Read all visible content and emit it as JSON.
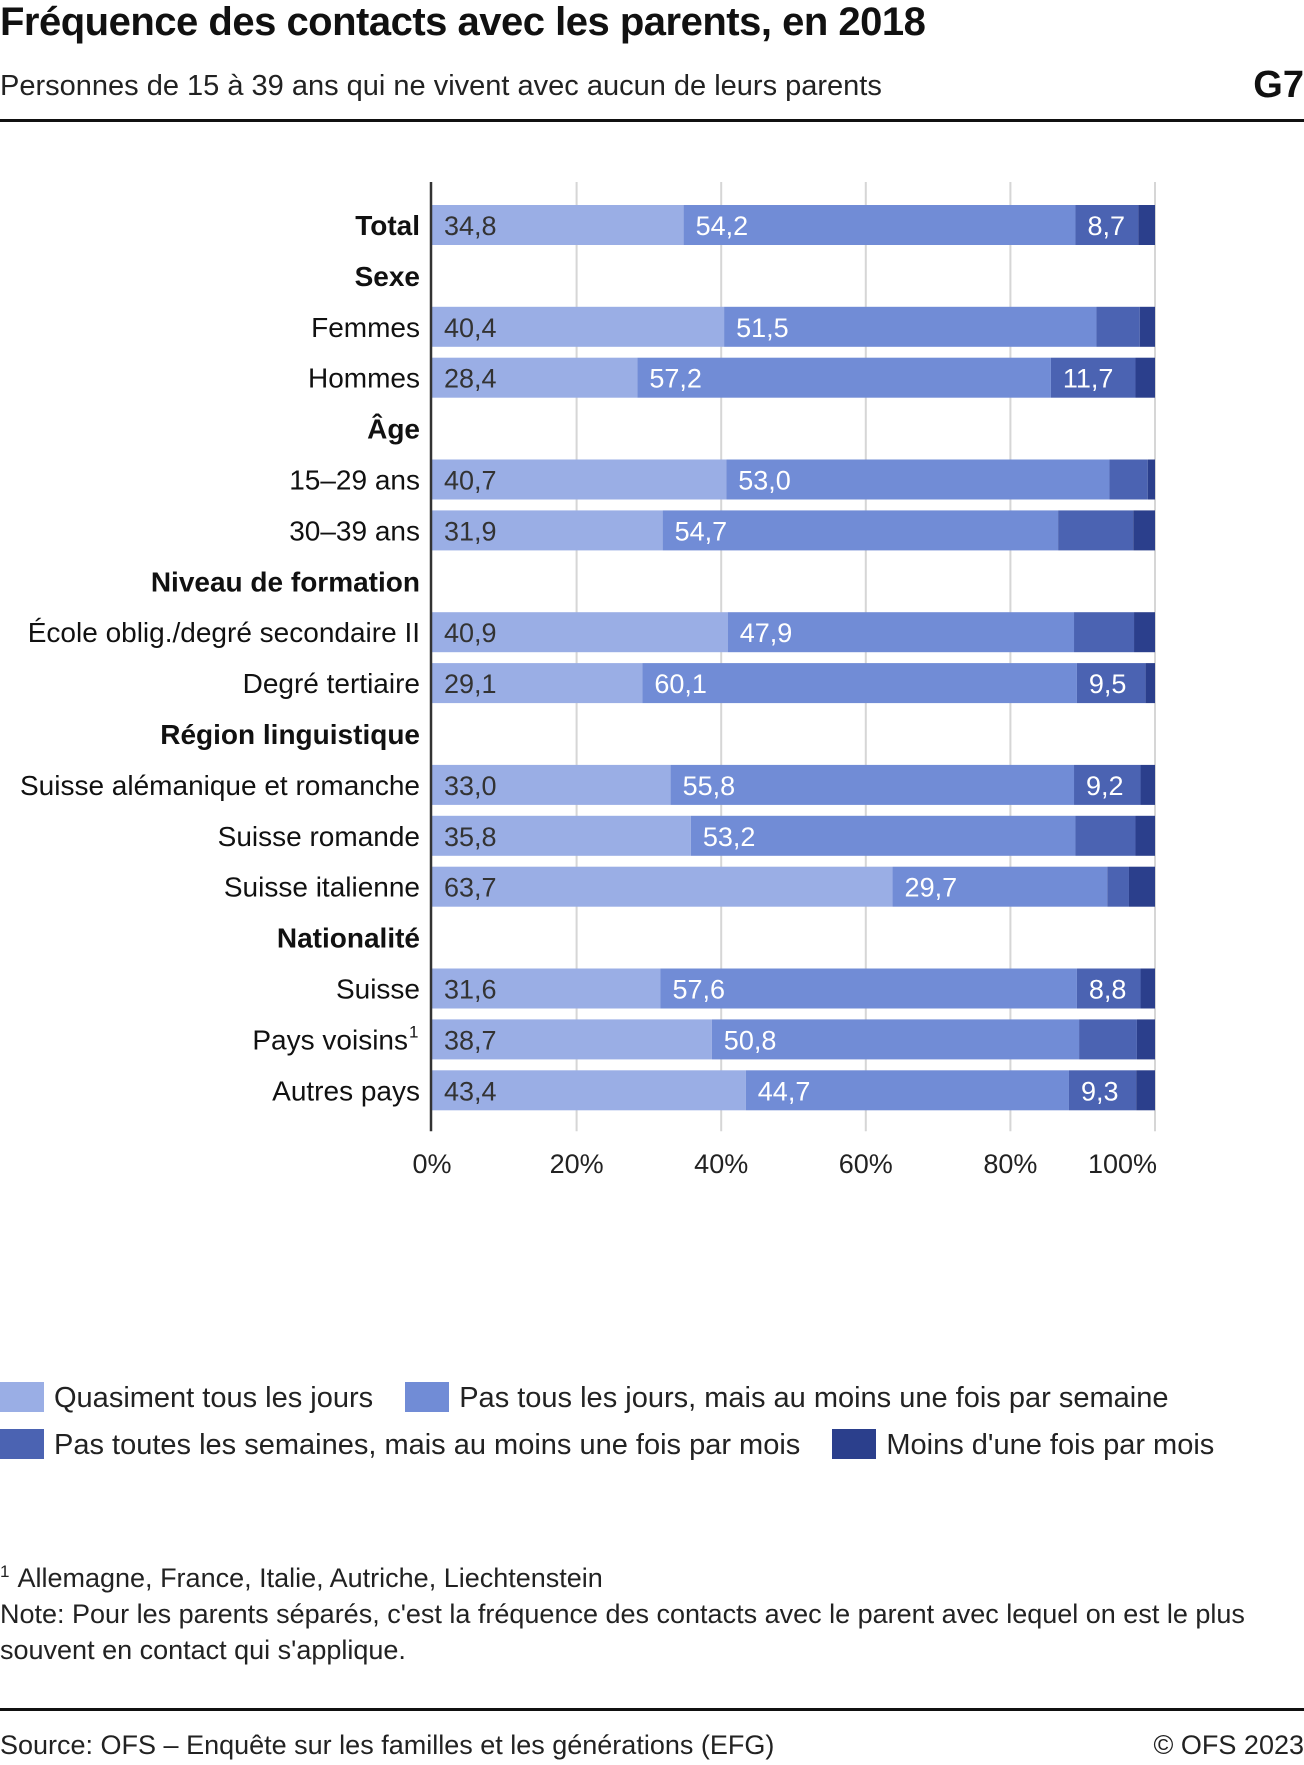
{
  "header": {
    "title": "Fréquence des contacts avec les parents, en 2018",
    "subtitle": "Personnes de 15 à 39 ans qui ne vivent avec aucun de leurs parents",
    "graphic_code": "G7"
  },
  "chart_data": {
    "type": "bar",
    "orientation": "horizontal",
    "stacked": true,
    "title": "Fréquence des contacts avec les parents, en 2018",
    "subtitle": "Personnes de 15 à 39 ans qui ne vivent avec aucun de leurs parents",
    "xlabel": "",
    "ylabel": "",
    "xlim": [
      0,
      100
    ],
    "x_ticks": [
      "0%",
      "20%",
      "40%",
      "60%",
      "80%",
      "100%"
    ],
    "grid": true,
    "legend_position": "bottom",
    "colors": [
      "#9aaee5",
      "#718cd6",
      "#4b63b2",
      "#2b3f8c"
    ],
    "label_colors": [
      "#333333",
      "#ffffff",
      "#ffffff",
      "#ffffff"
    ],
    "series": [
      {
        "name": "Quasiment tous les jours"
      },
      {
        "name": "Pas tous les jours, mais au moins une fois par semaine"
      },
      {
        "name": "Pas toutes les semaines, mais au moins une fois par mois"
      },
      {
        "name": "Moins d'une fois par mois"
      }
    ],
    "rows": [
      {
        "label": "Total",
        "heading": true,
        "values": [
          34.8,
          54.2,
          8.7,
          2.3
        ],
        "labels": [
          "34,8",
          "54,2",
          "8,7",
          ""
        ]
      },
      {
        "label": "Sexe",
        "heading": true,
        "values": null
      },
      {
        "label": "Femmes",
        "heading": false,
        "values": [
          40.4,
          51.5,
          6.0,
          2.1
        ],
        "labels": [
          "40,4",
          "51,5",
          "",
          ""
        ]
      },
      {
        "label": "Hommes",
        "heading": false,
        "values": [
          28.4,
          57.2,
          11.7,
          2.7
        ],
        "labels": [
          "28,4",
          "57,2",
          "11,7",
          ""
        ]
      },
      {
        "label": "Âge",
        "heading": true,
        "values": null
      },
      {
        "label": "15–29 ans",
        "heading": false,
        "values": [
          40.7,
          53.0,
          5.3,
          1.0
        ],
        "labels": [
          "40,7",
          "53,0",
          "",
          ""
        ]
      },
      {
        "label": "30–39 ans",
        "heading": false,
        "values": [
          31.9,
          54.7,
          10.4,
          3.0
        ],
        "labels": [
          "31,9",
          "54,7",
          "",
          ""
        ]
      },
      {
        "label": "Niveau de formation",
        "heading": true,
        "values": null
      },
      {
        "label": "École oblig./degré secondaire II",
        "heading": false,
        "values": [
          40.9,
          47.9,
          8.3,
          2.9
        ],
        "labels": [
          "40,9",
          "47,9",
          "",
          ""
        ]
      },
      {
        "label": "Degré tertiaire",
        "heading": false,
        "values": [
          29.1,
          60.1,
          9.5,
          1.3
        ],
        "labels": [
          "29,1",
          "60,1",
          "9,5",
          ""
        ]
      },
      {
        "label": "Région linguistique",
        "heading": true,
        "values": null
      },
      {
        "label": "Suisse alémanique et romanche",
        "heading": false,
        "values": [
          33.0,
          55.8,
          9.2,
          2.0
        ],
        "labels": [
          "33,0",
          "55,8",
          "9,2",
          ""
        ]
      },
      {
        "label": "Suisse romande",
        "heading": false,
        "values": [
          35.8,
          53.2,
          8.3,
          2.7
        ],
        "labels": [
          "35,8",
          "53,2",
          "",
          ""
        ]
      },
      {
        "label": "Suisse italienne",
        "heading": false,
        "values": [
          63.7,
          29.7,
          3.0,
          3.6
        ],
        "labels": [
          "63,7",
          "29,7",
          "",
          ""
        ]
      },
      {
        "label": "Nationalité",
        "heading": true,
        "values": null
      },
      {
        "label": "Suisse",
        "heading": false,
        "values": [
          31.6,
          57.6,
          8.8,
          2.0
        ],
        "labels": [
          "31,6",
          "57,6",
          "8,8",
          ""
        ]
      },
      {
        "label": "Pays voisins",
        "label_sup": "1",
        "heading": false,
        "values": [
          38.7,
          50.8,
          8.0,
          2.5
        ],
        "labels": [
          "38,7",
          "50,8",
          "",
          ""
        ]
      },
      {
        "label": "Autres pays",
        "heading": false,
        "values": [
          43.4,
          44.7,
          9.3,
          2.6
        ],
        "labels": [
          "43,4",
          "44,7",
          "9,3",
          ""
        ]
      }
    ]
  },
  "legend": {
    "items": [
      {
        "label": "Quasiment tous les jours",
        "color": "#9aaee5"
      },
      {
        "label": "Pas tous les jours, mais au moins une fois par semaine",
        "color": "#718cd6"
      },
      {
        "label": "Pas toutes les semaines, mais au moins une fois par mois",
        "color": "#4b63b2"
      },
      {
        "label": "Moins d'une fois par mois",
        "color": "#2b3f8c"
      }
    ]
  },
  "footnotes": {
    "note1_marker": "1",
    "note1_text": "Allemagne, France, Italie, Autriche, Liechtenstein",
    "note2_text": "Note: Pour les parents séparés, c'est la fréquence des contacts avec le parent avec lequel on est le plus souvent en contact qui s'applique."
  },
  "footer": {
    "source": "Source: OFS – Enquête sur les familles et les générations (EFG)",
    "copyright": "© OFS 2023"
  }
}
